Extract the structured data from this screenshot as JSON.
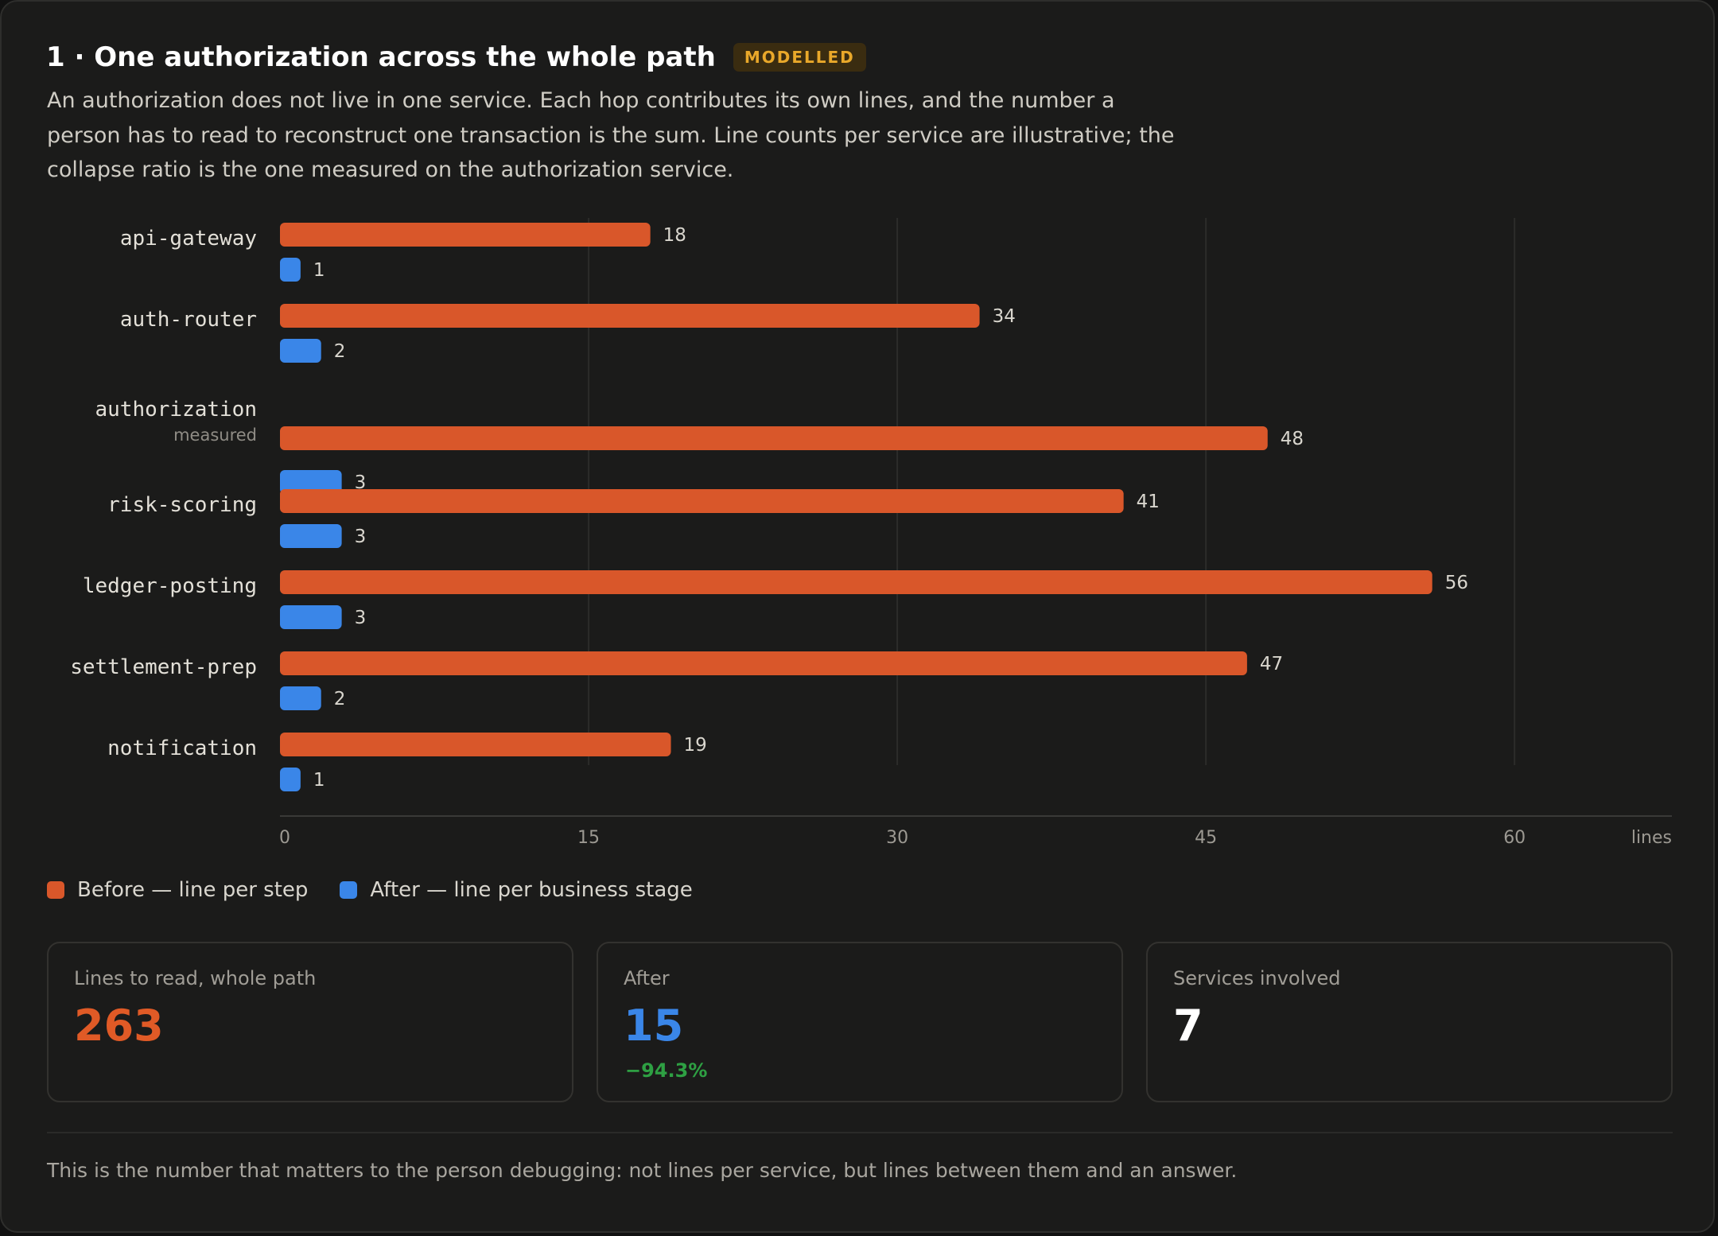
{
  "header": {
    "title": "1 · One authorization across the whole path",
    "badge": "MODELLED",
    "description": "An authorization does not live in one service. Each hop contributes its own lines, and the number a person has to read to reconstruct one transaction is the sum. Line counts per service are illustrative; the collapse ratio is the one measured on the authorization service."
  },
  "chart_data": {
    "type": "bar",
    "orientation": "horizontal",
    "categories": [
      "api-gateway",
      "auth-router",
      "authorization",
      "risk-scoring",
      "ledger-posting",
      "settlement-prep",
      "notification"
    ],
    "category_notes": {
      "authorization": "measured"
    },
    "series": [
      {
        "name": "Before — line per step",
        "values": [
          18,
          34,
          48,
          41,
          56,
          47,
          19
        ],
        "color": "#d9572a"
      },
      {
        "name": "After — line per business stage",
        "values": [
          1,
          2,
          3,
          3,
          3,
          2,
          1
        ],
        "color": "#3a86e8"
      }
    ],
    "xlim": [
      0,
      68
    ],
    "xticks": [
      0,
      15,
      30,
      45,
      60
    ],
    "xlabel": "lines",
    "grid": true,
    "legend": "bottom-left"
  },
  "legend": {
    "before": "Before — line per step",
    "after": "After — line per business stage"
  },
  "stats": [
    {
      "label": "Lines to read, whole path",
      "value": "263",
      "color": "#e05a26"
    },
    {
      "label": "After",
      "value": "15",
      "delta": "−94.3%",
      "color": "#3a86e8"
    },
    {
      "label": "Services involved",
      "value": "7",
      "color": "#ffffff"
    }
  ],
  "footnote": "This is the number that matters to the person debugging: not lines per service, but lines between them and an answer."
}
